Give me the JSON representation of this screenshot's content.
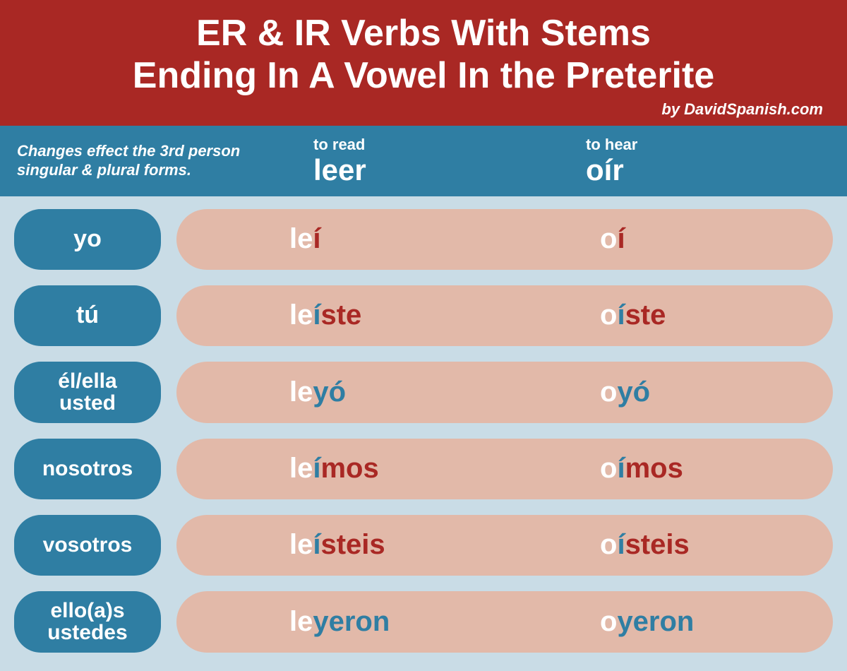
{
  "colors": {
    "header_bg": "#a92824",
    "subheader_bg": "#2f7ea3",
    "page_bg": "#c9dce6",
    "pill_bg": "#e2b9a9",
    "stem_color": "#ffffff",
    "blue_color": "#2f7ea3",
    "red_color": "#a92824"
  },
  "title_line1": "ER & IR Verbs With Stems",
  "title_line2": "Ending In A Vowel In the Preterite",
  "byline": "by DavidSpanish.com",
  "note": "Changes effect the 3rd person singular & plural forms.",
  "verbs": [
    {
      "translation": "to read",
      "infinitive": "leer"
    },
    {
      "translation": "to hear",
      "infinitive": "oír"
    }
  ],
  "rows": [
    {
      "pronoun_lines": [
        "yo"
      ],
      "leer": {
        "stem": "le",
        "mid": "",
        "mid_color": "blue",
        "end": "í",
        "end_color": "red"
      },
      "oir": {
        "stem": "o",
        "mid": "",
        "mid_color": "blue",
        "end": "í",
        "end_color": "red"
      }
    },
    {
      "pronoun_lines": [
        "tú"
      ],
      "leer": {
        "stem": "le",
        "mid": "í",
        "mid_color": "blue",
        "end": "ste",
        "end_color": "red"
      },
      "oir": {
        "stem": "o",
        "mid": "í",
        "mid_color": "blue",
        "end": "ste",
        "end_color": "red"
      }
    },
    {
      "pronoun_lines": [
        "él/ella",
        "usted"
      ],
      "leer": {
        "stem": "le",
        "mid": "",
        "mid_color": "blue",
        "end": "yó",
        "end_color": "blue"
      },
      "oir": {
        "stem": "o",
        "mid": "",
        "mid_color": "blue",
        "end": "yó",
        "end_color": "blue"
      }
    },
    {
      "pronoun_lines": [
        "nosotros"
      ],
      "leer": {
        "stem": "le",
        "mid": "í",
        "mid_color": "blue",
        "end": "mos",
        "end_color": "red"
      },
      "oir": {
        "stem": "o",
        "mid": "í",
        "mid_color": "blue",
        "end": "mos",
        "end_color": "red"
      }
    },
    {
      "pronoun_lines": [
        "vosotros"
      ],
      "leer": {
        "stem": "le",
        "mid": "í",
        "mid_color": "blue",
        "end": "steis",
        "end_color": "red"
      },
      "oir": {
        "stem": "o",
        "mid": "í",
        "mid_color": "blue",
        "end": "steis",
        "end_color": "red"
      }
    },
    {
      "pronoun_lines": [
        "ello(a)s",
        "ustedes"
      ],
      "leer": {
        "stem": "le",
        "mid": "",
        "mid_color": "blue",
        "end": "yeron",
        "end_color": "blue"
      },
      "oir": {
        "stem": "o",
        "mid": "",
        "mid_color": "blue",
        "end": "yeron",
        "end_color": "blue"
      }
    }
  ]
}
